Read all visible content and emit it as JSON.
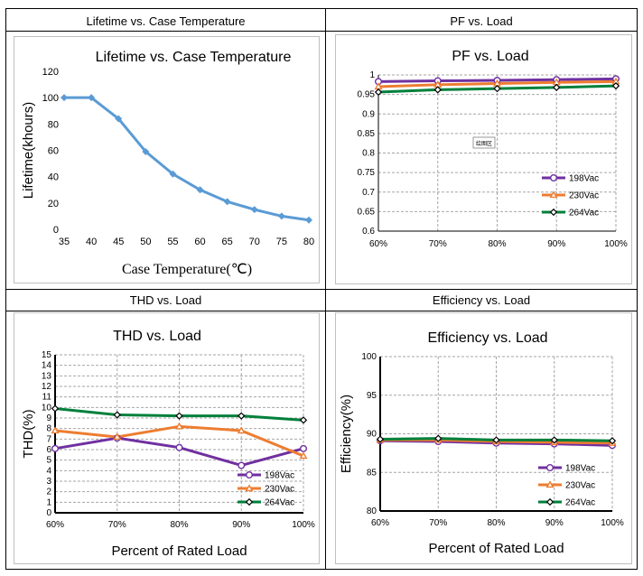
{
  "headers": {
    "lifetime": "Lifetime vs. Case Temperature",
    "pf": "PF vs. Load",
    "thd": "THD vs. Load",
    "eff": "Efficiency vs. Load"
  },
  "colors": {
    "lifetime": "#5b9bd5",
    "s198": "#7030a0",
    "s230": "#ed7d31",
    "s264": "#00803b"
  },
  "pf_watermark": "绘图区",
  "chart_data": [
    {
      "id": "lifetime",
      "type": "line",
      "title": "Lifetime vs. Case Temperature",
      "xlabel": "Case Temperature(℃)",
      "ylabel": "Lifetime(khours)",
      "x": [
        35,
        40,
        45,
        50,
        55,
        60,
        65,
        70,
        75,
        80
      ],
      "xticks": [
        "35",
        "40",
        "45",
        "50",
        "55",
        "60",
        "65",
        "70",
        "75",
        "80"
      ],
      "yticks": [
        "0",
        "20",
        "40",
        "60",
        "80",
        "100",
        "120"
      ],
      "ylim": [
        0,
        120
      ],
      "grid": false,
      "series": [
        {
          "name": "Lifetime",
          "values": [
            100,
            100,
            84,
            59,
            42,
            30,
            21,
            15,
            10,
            7
          ]
        }
      ]
    },
    {
      "id": "pf",
      "type": "line",
      "title": "PF vs. Load",
      "xlabel": "",
      "ylabel": "",
      "categories": [
        "60%",
        "70%",
        "80%",
        "90%",
        "100%"
      ],
      "yticks": [
        "0.6",
        "0.65",
        "0.7",
        "0.75",
        "0.8",
        "0.85",
        "0.9",
        "0.95",
        "1"
      ],
      "ylim": [
        0.6,
        1.0
      ],
      "grid": true,
      "legend": "bottom-right",
      "series": [
        {
          "name": "198Vac",
          "marker": "circle",
          "values": [
            0.983,
            0.985,
            0.986,
            0.988,
            0.99
          ]
        },
        {
          "name": "230Vac",
          "marker": "triangle",
          "values": [
            0.97,
            0.975,
            0.978,
            0.981,
            0.983
          ]
        },
        {
          "name": "264Vac",
          "marker": "diamond",
          "values": [
            0.956,
            0.962,
            0.965,
            0.968,
            0.972
          ]
        }
      ]
    },
    {
      "id": "thd",
      "type": "line",
      "title": "THD vs. Load",
      "xlabel": "Percent of Rated Load",
      "ylabel": "THD(%)",
      "categories": [
        "60%",
        "70%",
        "80%",
        "90%",
        "100%"
      ],
      "yticks": [
        "0",
        "1",
        "2",
        "3",
        "4",
        "5",
        "6",
        "7",
        "8",
        "9",
        "10",
        "11",
        "12",
        "13",
        "14",
        "15"
      ],
      "ylim": [
        0,
        15
      ],
      "grid": true,
      "legend": "bottom-right",
      "series": [
        {
          "name": "198Vac",
          "marker": "circle",
          "values": [
            6.1,
            7.1,
            6.2,
            4.5,
            6.1
          ]
        },
        {
          "name": "230Vac",
          "marker": "triangle",
          "values": [
            7.8,
            7.2,
            8.2,
            7.8,
            5.4
          ]
        },
        {
          "name": "264Vac",
          "marker": "diamond",
          "values": [
            9.9,
            9.3,
            9.2,
            9.2,
            8.8
          ]
        }
      ]
    },
    {
      "id": "eff",
      "type": "line",
      "title": "Efficiency vs. Load",
      "xlabel": "Percent of Rated Load",
      "ylabel": "Efficiency(%)",
      "categories": [
        "60%",
        "70%",
        "80%",
        "90%",
        "100%"
      ],
      "yticks": [
        "80",
        "85",
        "90",
        "95",
        "100"
      ],
      "ylim": [
        80,
        100
      ],
      "grid": true,
      "legend": "bottom-right",
      "series": [
        {
          "name": "198Vac",
          "marker": "circle",
          "values": [
            89.1,
            89.0,
            88.8,
            88.7,
            88.5
          ]
        },
        {
          "name": "230Vac",
          "marker": "triangle",
          "values": [
            89.2,
            89.2,
            89.0,
            88.9,
            88.8
          ]
        },
        {
          "name": "264Vac",
          "marker": "diamond",
          "values": [
            89.3,
            89.4,
            89.2,
            89.2,
            89.1
          ]
        }
      ]
    }
  ]
}
